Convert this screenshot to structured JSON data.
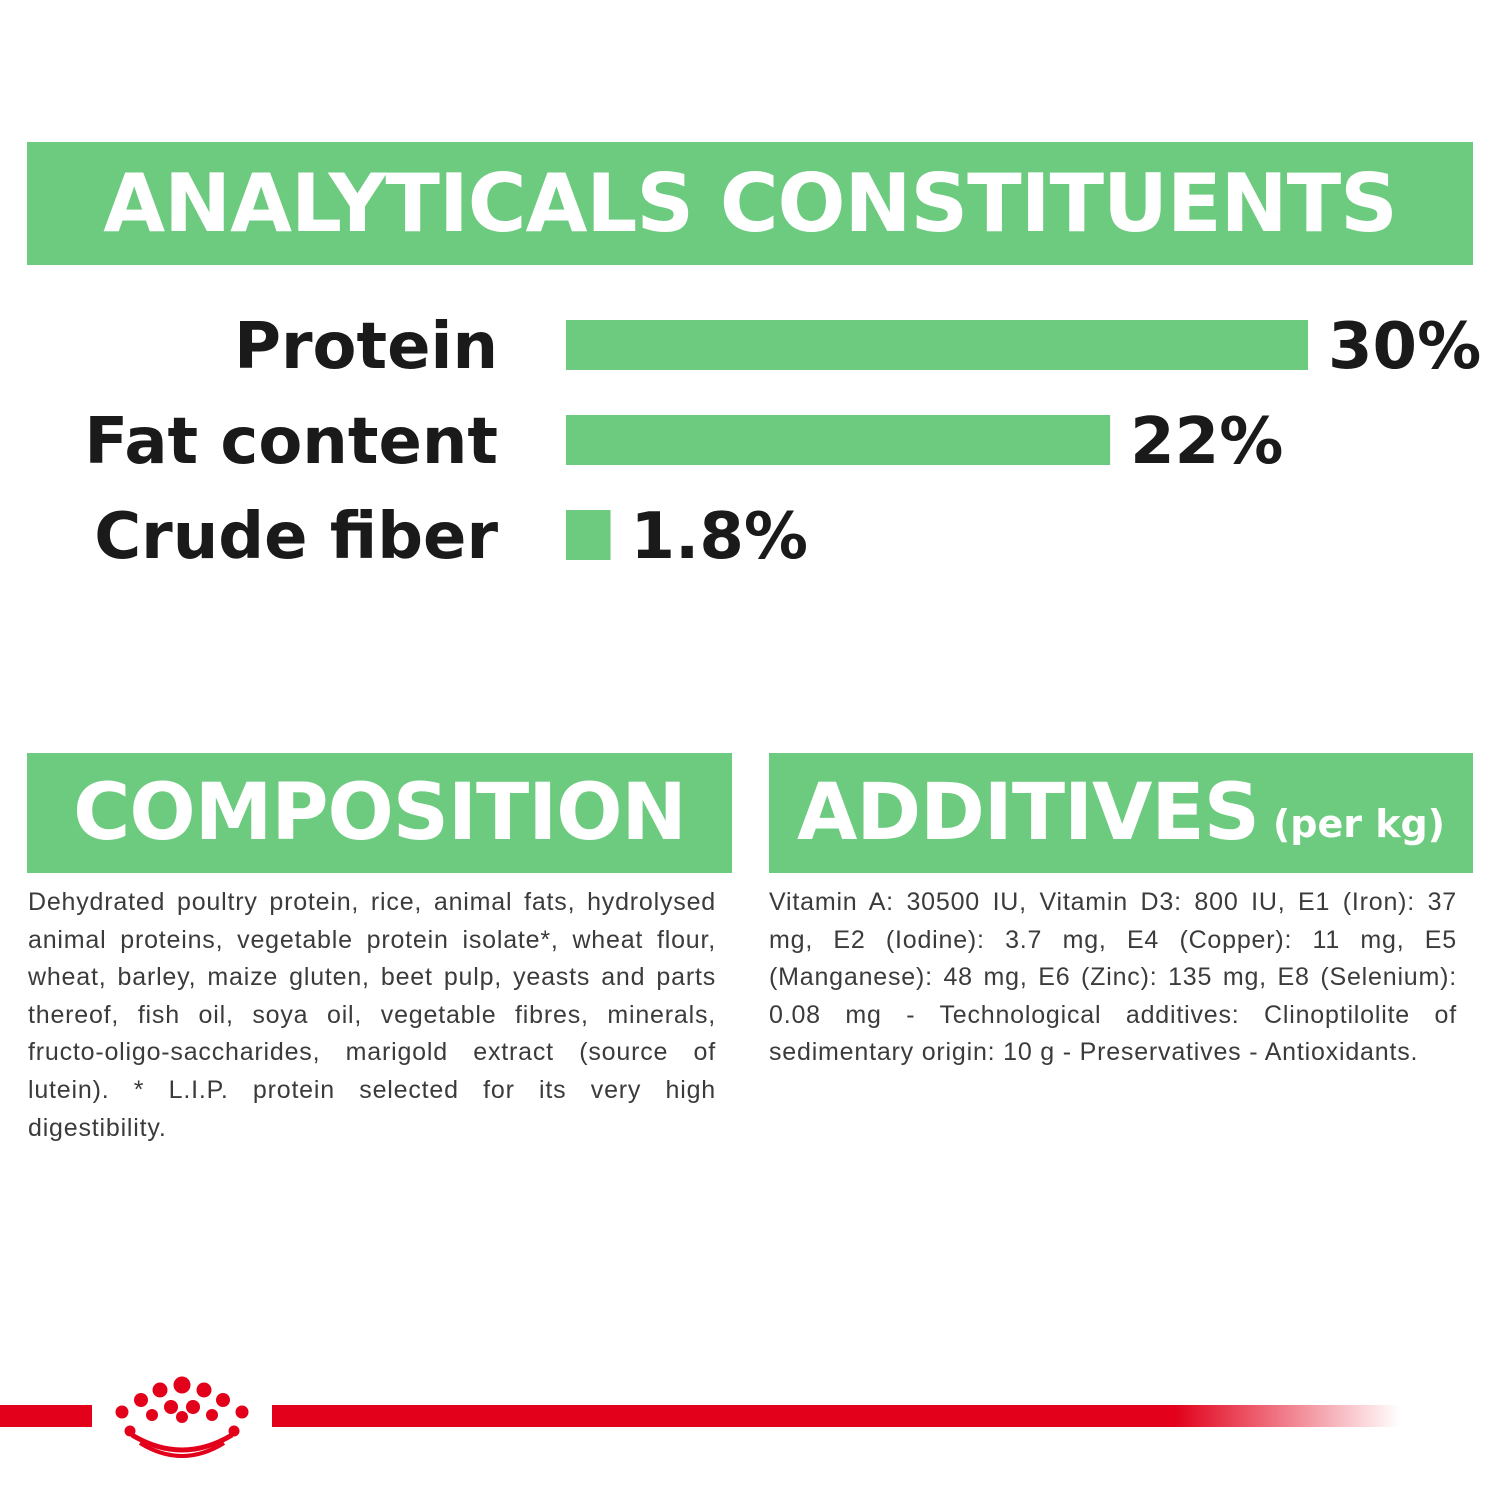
{
  "analytics": {
    "title": "ANALYTICALS CONSTITUENTS"
  },
  "chart_data": {
    "type": "bar",
    "orientation": "horizontal",
    "categories": [
      "Protein",
      "Fat content",
      "Crude fiber"
    ],
    "values": [
      30,
      22,
      1.8
    ],
    "value_labels": [
      "30%",
      "22%",
      "1.8%"
    ],
    "unit": "%",
    "xlim": [
      0,
      30
    ],
    "grid": false,
    "bar_color": "#6dcb80"
  },
  "composition": {
    "title": "COMPOSITION",
    "text": "Dehydrated poultry protein, rice, animal fats, hydrolysed animal proteins, vegetable protein isolate*, wheat flour, wheat, barley, maize gluten, beet pulp, yeasts and parts thereof, fish oil, soya oil, vegetable fibres, minerals, fructo-oligo-saccharides, marigold extract (source of lutein). * L.I.P. protein selected for its very high digestibility."
  },
  "additives": {
    "title": "ADDITIVES",
    "subtitle": "(per kg)",
    "text": "Vitamin A: 30500 IU, Vitamin D3: 800 IU, E1 (Iron): 37 mg, E2 (Iodine): 3.7 mg, E4 (Copper): 11 mg, E5 (Manganese): 48 mg, E6 (Zinc): 135 mg, E8 (Selenium): 0.08 mg - Technological additives: Clinoptilolite of sedimentary origin: 10 g - Preservatives - Antioxidants."
  },
  "colors": {
    "accent_green": "#6dcb80",
    "brand_red": "#e2001a",
    "text_dark": "#1a1a1a",
    "body_text": "#3b3b3b"
  },
  "icons": {
    "brand": "crown-logo-icon"
  }
}
